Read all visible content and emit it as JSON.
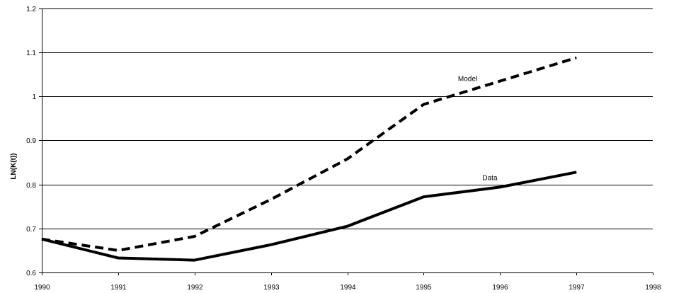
{
  "chart_data": {
    "type": "line",
    "title": "",
    "xlabel": "",
    "ylabel": "LN(K(t))",
    "xlim": [
      1990,
      1998
    ],
    "ylim": [
      0.6,
      1.2
    ],
    "x_ticks": [
      1990,
      1991,
      1992,
      1993,
      1994,
      1995,
      1996,
      1997,
      1998
    ],
    "y_ticks": [
      0.6,
      0.7,
      0.8,
      0.9,
      1,
      1.1,
      1.2
    ],
    "x_tick_labels": [
      "1990",
      "1991",
      "1992",
      "1993",
      "1994",
      "1995",
      "1996",
      "1997",
      "1998"
    ],
    "y_tick_labels": [
      "0.6",
      "0.7",
      "0.8",
      "0.9",
      "1",
      "1.1",
      "1.2"
    ],
    "grid": "horizontal",
    "legend": "none",
    "series": [
      {
        "name": "Model",
        "style": "dashed",
        "color": "#000000",
        "x": [
          1990,
          1991,
          1992,
          1993,
          1994,
          1995,
          1996,
          1997
        ],
        "y": [
          0.676,
          0.65,
          0.682,
          0.766,
          0.858,
          0.982,
          1.035,
          1.088
        ]
      },
      {
        "name": "Data",
        "style": "solid",
        "color": "#000000",
        "x": [
          1990,
          1991,
          1992,
          1993,
          1994,
          1995,
          1996,
          1997
        ],
        "y": [
          0.676,
          0.633,
          0.628,
          0.663,
          0.705,
          0.772,
          0.794,
          0.828
        ]
      }
    ],
    "annotations": [
      {
        "text": "Model",
        "series": "Model"
      },
      {
        "text": "Data",
        "series": "Data"
      }
    ]
  }
}
